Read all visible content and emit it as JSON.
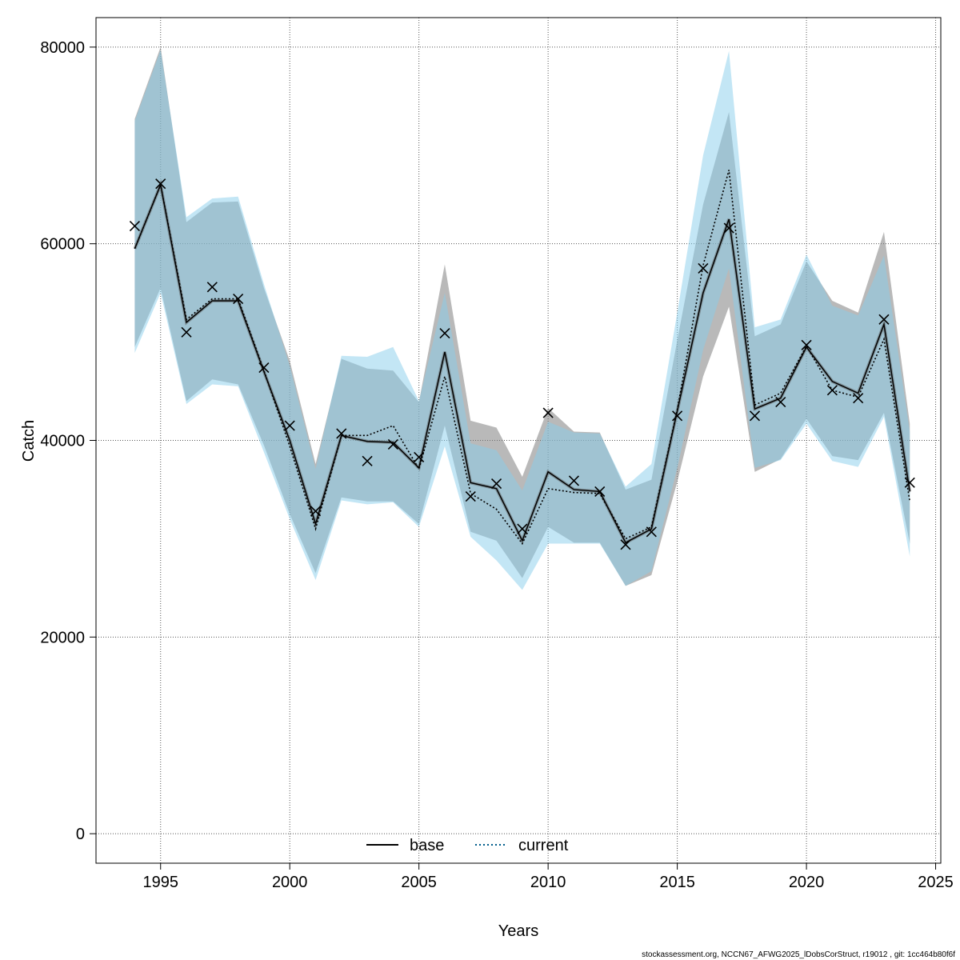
{
  "chart_data": {
    "type": "line",
    "xlabel": "Years",
    "ylabel": "Catch",
    "xlim": [
      1992.5,
      2025.2
    ],
    "ylim": [
      -3000,
      83000
    ],
    "xticks": [
      1995,
      2000,
      2005,
      2010,
      2015,
      2020,
      2025
    ],
    "yticks": [
      0,
      20000,
      40000,
      60000,
      80000
    ],
    "grid": true,
    "legend_position": "bottom-center",
    "x": [
      1994,
      1995,
      1996,
      1997,
      1998,
      1999,
      2000,
      2001,
      2002,
      2003,
      2004,
      2005,
      2006,
      2007,
      2008,
      2009,
      2010,
      2011,
      2012,
      2013,
      2014,
      2015,
      2016,
      2017,
      2018,
      2019,
      2020,
      2021,
      2022,
      2023,
      2024
    ],
    "series": [
      {
        "name": "base",
        "line_style": "solid",
        "color": "#000000",
        "band_color": "#808080",
        "values": [
          59500,
          66000,
          52000,
          54200,
          54200,
          47000,
          40000,
          31500,
          40500,
          39900,
          39800,
          37200,
          49000,
          35700,
          35100,
          29800,
          36800,
          35000,
          34800,
          29600,
          31000,
          43000,
          55000,
          62500,
          43200,
          44300,
          49500,
          46000,
          44800,
          51800,
          34800
        ],
        "lower": [
          49500,
          55500,
          44000,
          46200,
          45700,
          39500,
          32500,
          26500,
          34200,
          33800,
          33800,
          31500,
          41500,
          30700,
          29800,
          26000,
          31200,
          29600,
          29600,
          25200,
          26300,
          35800,
          46500,
          53600,
          36800,
          38100,
          42200,
          38400,
          38000,
          42800,
          29500
        ],
        "upper": [
          72700,
          80000,
          62200,
          64200,
          64300,
          55500,
          48100,
          37600,
          48300,
          47300,
          47100,
          43900,
          57900,
          42000,
          41300,
          36300,
          43300,
          40900,
          40800,
          35000,
          36000,
          50200,
          64000,
          73400,
          50600,
          51800,
          58200,
          54200,
          53000,
          61200,
          41700
        ]
      },
      {
        "name": "current",
        "line_style": "dotted",
        "color": "#005c8c",
        "band_color": "#87ceeb",
        "values": [
          59500,
          66000,
          52300,
          54400,
          54400,
          47100,
          39400,
          31000,
          40500,
          40500,
          41500,
          37100,
          46500,
          34600,
          33000,
          29500,
          35100,
          34700,
          34600,
          30000,
          31200,
          43100,
          57800,
          67500,
          43600,
          44800,
          49600,
          45100,
          44400,
          50300,
          33800
        ],
        "lower": [
          48900,
          55000,
          43700,
          45700,
          45500,
          38800,
          32000,
          25800,
          33900,
          33500,
          33700,
          31200,
          39400,
          30200,
          27800,
          24800,
          29500,
          29500,
          29500,
          25200,
          26700,
          37200,
          49200,
          57500,
          37200,
          38000,
          41700,
          37900,
          37300,
          42400,
          28200
        ],
        "upper": [
          72500,
          79700,
          62700,
          64600,
          64800,
          55900,
          47600,
          37100,
          48600,
          48500,
          49500,
          44000,
          55000,
          39700,
          39000,
          34900,
          41900,
          40800,
          40700,
          35300,
          37600,
          53000,
          69000,
          79600,
          51500,
          52300,
          58900,
          53700,
          52700,
          58800,
          40900
        ]
      }
    ],
    "observations": {
      "marker": "x",
      "values": [
        61800,
        66100,
        51000,
        55600,
        54400,
        47400,
        41500,
        32800,
        40700,
        37900,
        39600,
        38300,
        50900,
        34300,
        35600,
        31000,
        42800,
        35900,
        34800,
        29400,
        30700,
        42500,
        57500,
        61600,
        42500,
        43900,
        49700,
        45100,
        44300,
        52300,
        35700
      ]
    }
  },
  "footer_text": "stockassessment.org, NCCN67_AFWG2025_lDobsCorStruct, r19012 , git: 1cc464b80f6f"
}
